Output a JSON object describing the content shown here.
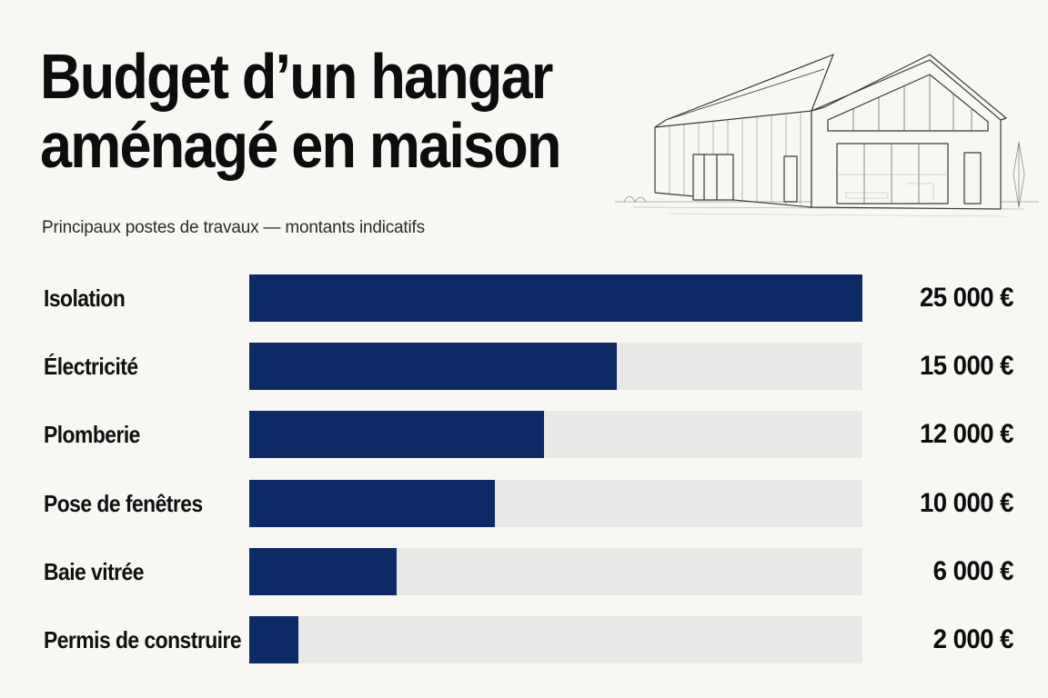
{
  "header": {
    "title_line1": "Budget d’un hangar",
    "title_line2": "aménagé en maison",
    "subtitle": "Principaux postes de travaux — montants indicatifs"
  },
  "illustration": {
    "icon": "hangar-house-sketch-icon"
  },
  "colors": {
    "bar": "#0b2a66",
    "track": "#e9e8e6",
    "background": "#f8f7f4"
  },
  "chart_data": {
    "type": "bar",
    "orientation": "horizontal",
    "categories": [
      "Isolation",
      "Électricité",
      "Plomberie",
      "Pose de fenêtres",
      "Baie vitrée",
      "Permis de construire"
    ],
    "values": [
      25000,
      15000,
      12000,
      10000,
      6000,
      2000
    ],
    "value_labels": [
      "25 000 €",
      "15 000 €",
      "12 000 €",
      "10 000 €",
      "6 000 €",
      "2 000 €"
    ],
    "xlim": [
      0,
      25000
    ],
    "grid": false,
    "legend": "none"
  }
}
